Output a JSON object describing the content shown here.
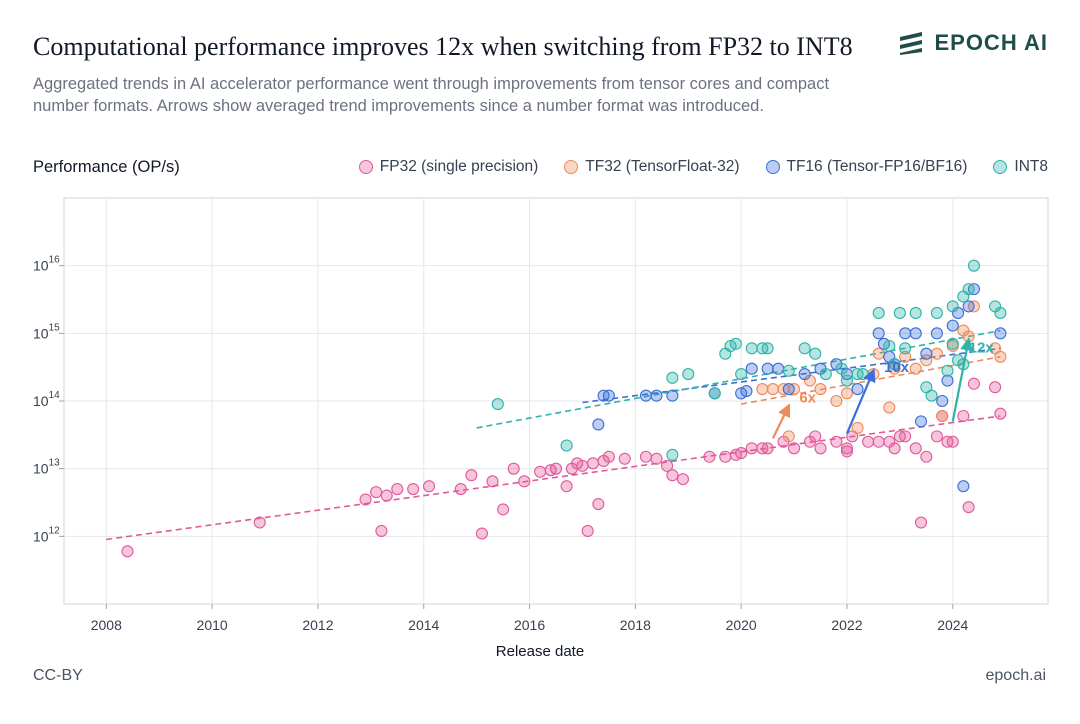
{
  "header": {
    "title": "Computational performance improves 12x when switching from FP32 to INT8",
    "subtitle": "Aggregated trends in AI accelerator performance went through improvements from tensor cores and compact number formats. Arrows show averaged trend improvements since a number format was introduced.",
    "brand": "EPOCH AI"
  },
  "footer": {
    "license": "CC-BY",
    "site": "epoch.ai"
  },
  "colors": {
    "fp32": "#e05a9a",
    "tf32": "#ef8a5a",
    "tf16": "#3b6fd6",
    "int8": "#2fb3a8"
  },
  "chart_data": {
    "type": "scatter",
    "ylabel": "Performance (OP/s)",
    "xlabel": "Release date",
    "y_scale": "log",
    "xlim": [
      2007.2,
      2025.8
    ],
    "ylim": [
      100000000000.0,
      1e+17
    ],
    "x_ticks": [
      2008,
      2010,
      2012,
      2014,
      2016,
      2018,
      2020,
      2022,
      2024
    ],
    "y_ticks": [
      {
        "value": 1000000000000.0,
        "base": "10",
        "exp": "12"
      },
      {
        "value": 10000000000000.0,
        "base": "10",
        "exp": "13"
      },
      {
        "value": 100000000000000.0,
        "base": "10",
        "exp": "14"
      },
      {
        "value": 1000000000000000.0,
        "base": "10",
        "exp": "15"
      },
      {
        "value": 1e+16,
        "base": "10",
        "exp": "16"
      }
    ],
    "grid": true,
    "legend_position": "top-right",
    "series": [
      {
        "name": "FP32 (single precision)",
        "key": "fp32",
        "points": [
          [
            2008.4,
            600000000000.0
          ],
          [
            2010.9,
            1600000000000.0
          ],
          [
            2012.9,
            3500000000000.0
          ],
          [
            2013.1,
            4500000000000.0
          ],
          [
            2013.2,
            1200000000000.0
          ],
          [
            2013.3,
            4000000000000.0
          ],
          [
            2013.5,
            5000000000000.0
          ],
          [
            2013.8,
            5000000000000.0
          ],
          [
            2014.1,
            5500000000000.0
          ],
          [
            2014.7,
            5000000000000.0
          ],
          [
            2014.9,
            8000000000000.0
          ],
          [
            2015.1,
            1100000000000.0
          ],
          [
            2015.3,
            6500000000000.0
          ],
          [
            2015.5,
            2500000000000.0
          ],
          [
            2015.7,
            10000000000000.0
          ],
          [
            2015.9,
            6500000000000.0
          ],
          [
            2016.2,
            9000000000000.0
          ],
          [
            2016.4,
            9500000000000.0
          ],
          [
            2016.5,
            10000000000000.0
          ],
          [
            2016.7,
            5500000000000.0
          ],
          [
            2016.8,
            10000000000000.0
          ],
          [
            2016.9,
            12000000000000.0
          ],
          [
            2017.0,
            11000000000000.0
          ],
          [
            2017.1,
            1200000000000.0
          ],
          [
            2017.2,
            12000000000000.0
          ],
          [
            2017.3,
            3000000000000.0
          ],
          [
            2017.4,
            13000000000000.0
          ],
          [
            2017.5,
            15000000000000.0
          ],
          [
            2017.8,
            14000000000000.0
          ],
          [
            2018.2,
            15000000000000.0
          ],
          [
            2018.4,
            14000000000000.0
          ],
          [
            2018.6,
            11000000000000.0
          ],
          [
            2018.7,
            8000000000000.0
          ],
          [
            2018.9,
            7000000000000.0
          ],
          [
            2019.4,
            15000000000000.0
          ],
          [
            2019.7,
            15000000000000.0
          ],
          [
            2019.9,
            16000000000000.0
          ],
          [
            2020.0,
            17000000000000.0
          ],
          [
            2020.2,
            20000000000000.0
          ],
          [
            2020.4,
            20000000000000.0
          ],
          [
            2020.5,
            20000000000000.0
          ],
          [
            2020.8,
            25000000000000.0
          ],
          [
            2021.0,
            20000000000000.0
          ],
          [
            2021.3,
            25000000000000.0
          ],
          [
            2021.4,
            30000000000000.0
          ],
          [
            2021.5,
            20000000000000.0
          ],
          [
            2021.8,
            25000000000000.0
          ],
          [
            2022.0,
            20000000000000.0
          ],
          [
            2022.1,
            30000000000000.0
          ],
          [
            2022.4,
            25000000000000.0
          ],
          [
            2022.6,
            25000000000000.0
          ],
          [
            2022.8,
            25000000000000.0
          ],
          [
            2023.0,
            30000000000000.0
          ],
          [
            2023.1,
            30000000000000.0
          ],
          [
            2023.3,
            20000000000000.0
          ],
          [
            2023.4,
            1600000000000.0
          ],
          [
            2023.5,
            15000000000000.0
          ],
          [
            2023.7,
            30000000000000.0
          ],
          [
            2023.9,
            25000000000000.0
          ],
          [
            2024.0,
            25000000000000.0
          ],
          [
            2024.3,
            2700000000000.0
          ],
          [
            2024.4,
            180000000000000.0
          ],
          [
            2024.8,
            160000000000000.0
          ],
          [
            2024.9,
            65000000000000.0
          ],
          [
            2022.0,
            18000000000000.0
          ],
          [
            2022.9,
            20000000000000.0
          ],
          [
            2023.8,
            60000000000000.0
          ],
          [
            2024.2,
            60000000000000.0
          ]
        ]
      },
      {
        "name": "TF32 (TensorFloat-32)",
        "key": "tf32",
        "points": [
          [
            2020.4,
            150000000000000.0
          ],
          [
            2020.6,
            150000000000000.0
          ],
          [
            2020.8,
            150000000000000.0
          ],
          [
            2020.9,
            30000000000000.0
          ],
          [
            2021.0,
            150000000000000.0
          ],
          [
            2021.3,
            200000000000000.0
          ],
          [
            2021.5,
            150000000000000.0
          ],
          [
            2021.8,
            100000000000000.0
          ],
          [
            2022.0,
            130000000000000.0
          ],
          [
            2022.2,
            40000000000000.0
          ],
          [
            2022.5,
            250000000000000.0
          ],
          [
            2022.6,
            500000000000000.0
          ],
          [
            2022.8,
            80000000000000.0
          ],
          [
            2022.9,
            300000000000000.0
          ],
          [
            2023.1,
            450000000000000.0
          ],
          [
            2023.3,
            300000000000000.0
          ],
          [
            2023.5,
            400000000000000.0
          ],
          [
            2023.7,
            500000000000000.0
          ],
          [
            2023.8,
            60000000000000.0
          ],
          [
            2024.0,
            650000000000000.0
          ],
          [
            2024.2,
            1100000000000000.0
          ],
          [
            2024.3,
            900000000000000.0
          ],
          [
            2024.4,
            2500000000000000.0
          ],
          [
            2024.8,
            600000000000000.0
          ],
          [
            2024.9,
            450000000000000.0
          ]
        ]
      },
      {
        "name": "TF16 (Tensor-FP16/BF16)",
        "key": "tf16",
        "points": [
          [
            2017.3,
            45000000000000.0
          ],
          [
            2017.4,
            120000000000000.0
          ],
          [
            2017.5,
            120000000000000.0
          ],
          [
            2018.2,
            120000000000000.0
          ],
          [
            2018.4,
            120000000000000.0
          ],
          [
            2018.7,
            120000000000000.0
          ],
          [
            2019.5,
            130000000000000.0
          ],
          [
            2020.0,
            130000000000000.0
          ],
          [
            2020.1,
            140000000000000.0
          ],
          [
            2020.2,
            300000000000000.0
          ],
          [
            2020.5,
            300000000000000.0
          ],
          [
            2020.7,
            300000000000000.0
          ],
          [
            2020.9,
            150000000000000.0
          ],
          [
            2021.2,
            250000000000000.0
          ],
          [
            2021.5,
            300000000000000.0
          ],
          [
            2021.8,
            350000000000000.0
          ],
          [
            2022.0,
            250000000000000.0
          ],
          [
            2022.2,
            150000000000000.0
          ],
          [
            2022.6,
            1000000000000000.0
          ],
          [
            2022.7,
            700000000000000.0
          ],
          [
            2022.8,
            450000000000000.0
          ],
          [
            2022.9,
            350000000000000.0
          ],
          [
            2023.1,
            1000000000000000.0
          ],
          [
            2023.3,
            1000000000000000.0
          ],
          [
            2023.5,
            500000000000000.0
          ],
          [
            2023.7,
            1000000000000000.0
          ],
          [
            2023.8,
            100000000000000.0
          ],
          [
            2023.9,
            200000000000000.0
          ],
          [
            2024.0,
            1300000000000000.0
          ],
          [
            2024.1,
            2000000000000000.0
          ],
          [
            2024.2,
            5500000000000.0
          ],
          [
            2024.3,
            2500000000000000.0
          ],
          [
            2024.4,
            4500000000000000.0
          ],
          [
            2024.9,
            1000000000000000.0
          ],
          [
            2023.4,
            50000000000000.0
          ]
        ]
      },
      {
        "name": "INT8",
        "key": "int8",
        "points": [
          [
            2015.4,
            90000000000000.0
          ],
          [
            2016.7,
            22000000000000.0
          ],
          [
            2018.7,
            16000000000000.0
          ],
          [
            2018.7,
            220000000000000.0
          ],
          [
            2019.0,
            250000000000000.0
          ],
          [
            2019.5,
            130000000000000.0
          ],
          [
            2019.7,
            500000000000000.0
          ],
          [
            2019.8,
            650000000000000.0
          ],
          [
            2019.9,
            700000000000000.0
          ],
          [
            2020.0,
            250000000000000.0
          ],
          [
            2020.2,
            600000000000000.0
          ],
          [
            2020.4,
            600000000000000.0
          ],
          [
            2020.5,
            600000000000000.0
          ],
          [
            2020.9,
            280000000000000.0
          ],
          [
            2021.2,
            600000000000000.0
          ],
          [
            2021.4,
            500000000000000.0
          ],
          [
            2021.6,
            250000000000000.0
          ],
          [
            2021.9,
            300000000000000.0
          ],
          [
            2022.0,
            200000000000000.0
          ],
          [
            2022.2,
            250000000000000.0
          ],
          [
            2022.3,
            250000000000000.0
          ],
          [
            2022.6,
            2000000000000000.0
          ],
          [
            2022.8,
            650000000000000.0
          ],
          [
            2022.9,
            350000000000000.0
          ],
          [
            2023.0,
            2000000000000000.0
          ],
          [
            2023.1,
            600000000000000.0
          ],
          [
            2023.3,
            2000000000000000.0
          ],
          [
            2023.5,
            160000000000000.0
          ],
          [
            2023.7,
            2000000000000000.0
          ],
          [
            2023.9,
            280000000000000.0
          ],
          [
            2024.0,
            2500000000000000.0
          ],
          [
            2024.1,
            400000000000000.0
          ],
          [
            2024.2,
            3500000000000000.0
          ],
          [
            2024.3,
            4500000000000000.0
          ],
          [
            2024.4,
            1e+16
          ],
          [
            2024.8,
            2500000000000000.0
          ],
          [
            2024.9,
            2000000000000000.0
          ],
          [
            2023.6,
            120000000000000.0
          ],
          [
            2024.0,
            700000000000000.0
          ],
          [
            2024.2,
            350000000000000.0
          ]
        ]
      }
    ],
    "trendlines": [
      {
        "key": "fp32",
        "from": [
          2008.0,
          900000000000.0
        ],
        "to": [
          2024.9,
          60000000000000.0
        ]
      },
      {
        "key": "tf32",
        "from": [
          2020.0,
          90000000000000.0
        ],
        "to": [
          2024.9,
          450000000000000.0
        ]
      },
      {
        "key": "tf16",
        "from": [
          2017.0,
          95000000000000.0
        ],
        "to": [
          2024.9,
          600000000000000.0
        ]
      },
      {
        "key": "int8",
        "from": [
          2015.0,
          40000000000000.0
        ],
        "to": [
          2024.9,
          1100000000000000.0
        ]
      }
    ],
    "annotations": [
      {
        "key": "tf32",
        "text": "6x",
        "from": [
          2020.6,
          28000000000000.0
        ],
        "to": [
          2020.9,
          85000000000000.0
        ],
        "label_at": [
          2021.1,
          95000000000000.0
        ]
      },
      {
        "key": "tf16",
        "text": "10x",
        "from": [
          2022.0,
          33000000000000.0
        ],
        "to": [
          2022.5,
          280000000000000.0
        ],
        "label_at": [
          2022.7,
          270000000000000.0
        ]
      },
      {
        "key": "int8",
        "text": "12x",
        "from": [
          2024.0,
          50000000000000.0
        ],
        "to": [
          2024.3,
          800000000000000.0
        ],
        "label_at": [
          2024.3,
          520000000000000.0
        ]
      }
    ]
  }
}
